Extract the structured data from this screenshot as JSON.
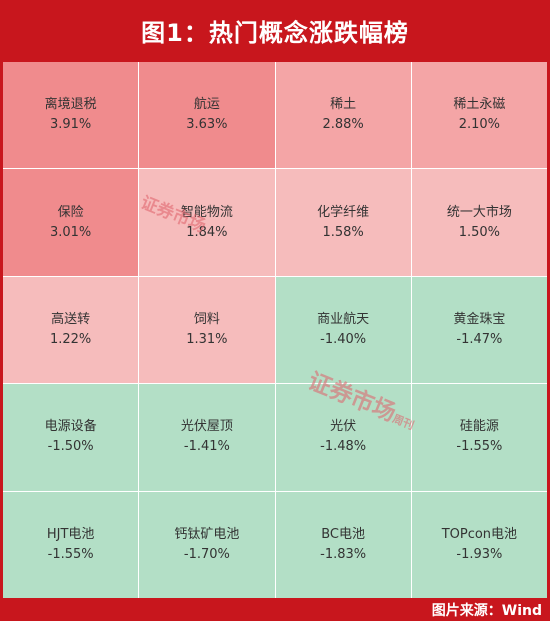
{
  "title": "图1：热门概念涨跌幅榜",
  "source": "图片来源：Wind",
  "watermark": "证券市场",
  "watermark_sub": "周刊",
  "colors": {
    "frame": "#c8161d",
    "rise_strong": "#f08b8d",
    "rise_mid": "#f4a5a6",
    "rise_light": "#f6bcbc",
    "fall": "#b3dfc6"
  },
  "chart_data": {
    "type": "heatmap",
    "unit": "%",
    "cells": [
      {
        "name": "离境退税",
        "value": 3.91,
        "label": "3.91%"
      },
      {
        "name": "航运",
        "value": 3.63,
        "label": "3.63%"
      },
      {
        "name": "稀土",
        "value": 2.88,
        "label": "2.88%"
      },
      {
        "name": "稀土永磁",
        "value": 2.1,
        "label": "2.10%"
      },
      {
        "name": "保险",
        "value": 3.01,
        "label": "3.01%"
      },
      {
        "name": "智能物流",
        "value": 1.84,
        "label": "1.84%"
      },
      {
        "name": "化学纤维",
        "value": 1.58,
        "label": "1.58%"
      },
      {
        "name": "统一大市场",
        "value": 1.5,
        "label": "1.50%"
      },
      {
        "name": "高送转",
        "value": 1.22,
        "label": "1.22%"
      },
      {
        "name": "饲料",
        "value": 1.31,
        "label": "1.31%"
      },
      {
        "name": "商业航天",
        "value": -1.4,
        "label": "-1.40%"
      },
      {
        "name": "黄金珠宝",
        "value": -1.47,
        "label": "-1.47%"
      },
      {
        "name": "电源设备",
        "value": -1.5,
        "label": "-1.50%"
      },
      {
        "name": "光伏屋顶",
        "value": -1.41,
        "label": "-1.41%"
      },
      {
        "name": "光伏",
        "value": -1.48,
        "label": "-1.48%"
      },
      {
        "name": "硅能源",
        "value": -1.55,
        "label": "-1.55%"
      },
      {
        "name": "HJT电池",
        "value": -1.55,
        "label": "-1.55%"
      },
      {
        "name": "钙钛矿电池",
        "value": -1.7,
        "label": "-1.70%"
      },
      {
        "name": "BC电池",
        "value": -1.83,
        "label": "-1.83%"
      },
      {
        "name": "TOPcon电池",
        "value": -1.93,
        "label": "-1.93%"
      }
    ]
  }
}
